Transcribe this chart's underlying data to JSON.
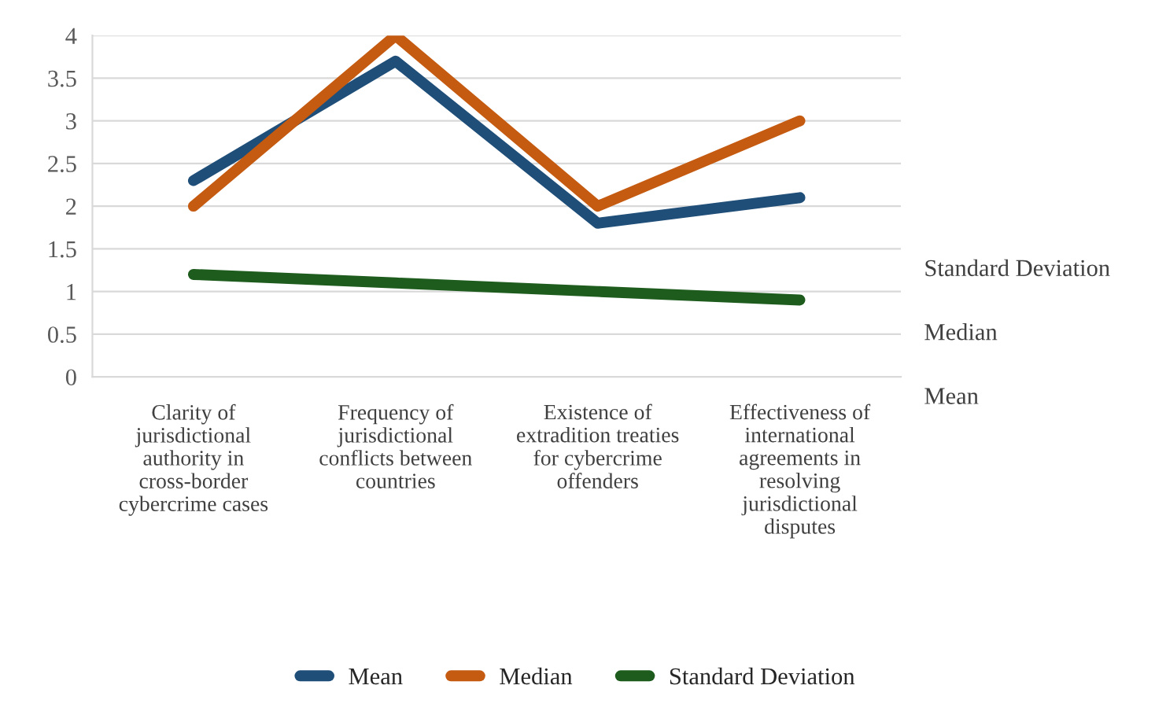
{
  "chart_data": {
    "type": "line",
    "categories": [
      "Clarity of jurisdictional authority in cross-border cybercrime cases",
      "Frequency of jurisdictional conflicts between countries",
      "Existence of extradition treaties for cybercrime offenders",
      "Effectiveness of international agreements in resolving jurisdictional disputes"
    ],
    "series": [
      {
        "name": "Mean",
        "color": "#1f4e79",
        "values": [
          2.3,
          3.7,
          1.8,
          2.1
        ]
      },
      {
        "name": "Median",
        "color": "#c55a11",
        "values": [
          2,
          4,
          2,
          3
        ]
      },
      {
        "name": "Standard Deviation",
        "color": "#1e5c1e",
        "values": [
          1.2,
          1.1,
          1.0,
          0.9
        ]
      }
    ],
    "ylim": [
      0,
      4
    ],
    "yticks": [
      0,
      0.5,
      1,
      1.5,
      2,
      2.5,
      3,
      3.5,
      4
    ],
    "grid": "y",
    "legend": "bottom",
    "line_style": "solid",
    "marker": "none",
    "annotations": [
      "Standard Deviation",
      "Median",
      "Mean"
    ]
  }
}
